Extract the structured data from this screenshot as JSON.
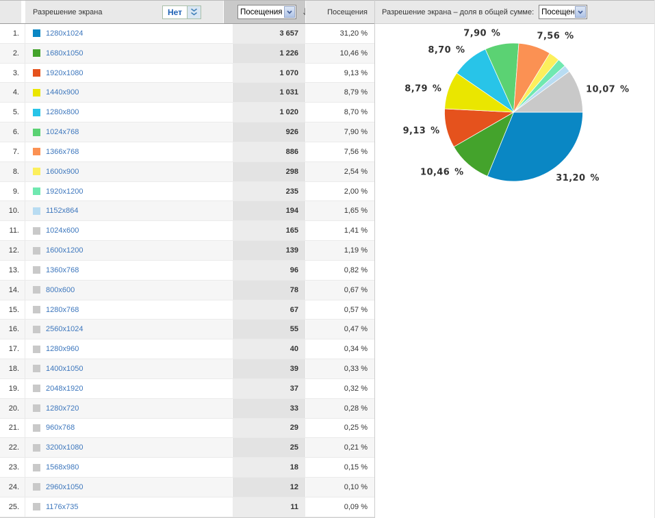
{
  "table": {
    "header": {
      "dimension_label": "Разрешение экрана",
      "filter_value": "Нет",
      "metric_select_value": "Посещения",
      "sort_arrow": "↓",
      "metric_column_label": "Посещения"
    },
    "rows": [
      {
        "rank": "1.",
        "resolution": "1280x1024",
        "visits": "3 657",
        "percent": "31,20 %",
        "color": "#0A87C4"
      },
      {
        "rank": "2.",
        "resolution": "1680x1050",
        "visits": "1 226",
        "percent": "10,46 %",
        "color": "#44A32C"
      },
      {
        "rank": "3.",
        "resolution": "1920x1080",
        "visits": "1 070",
        "percent": "9,13 %",
        "color": "#E5521D"
      },
      {
        "rank": "4.",
        "resolution": "1440x900",
        "visits": "1 031",
        "percent": "8,79 %",
        "color": "#EAE600"
      },
      {
        "rank": "5.",
        "resolution": "1280x800",
        "visits": "1 020",
        "percent": "8,70 %",
        "color": "#28C4E8"
      },
      {
        "rank": "6.",
        "resolution": "1024x768",
        "visits": "926",
        "percent": "7,90 %",
        "color": "#5BD273"
      },
      {
        "rank": "7.",
        "resolution": "1366x768",
        "visits": "886",
        "percent": "7,56 %",
        "color": "#FB9153"
      },
      {
        "rank": "8.",
        "resolution": "1600x900",
        "visits": "298",
        "percent": "2,54 %",
        "color": "#FCEF5C"
      },
      {
        "rank": "9.",
        "resolution": "1920x1200",
        "visits": "235",
        "percent": "2,00 %",
        "color": "#70E8B0"
      },
      {
        "rank": "10.",
        "resolution": "1152x864",
        "visits": "194",
        "percent": "1,65 %",
        "color": "#B8DCF2"
      },
      {
        "rank": "11.",
        "resolution": "1024x600",
        "visits": "165",
        "percent": "1,41 %",
        "color": "#C9C9C9"
      },
      {
        "rank": "12.",
        "resolution": "1600x1200",
        "visits": "139",
        "percent": "1,19 %",
        "color": "#C9C9C9"
      },
      {
        "rank": "13.",
        "resolution": "1360x768",
        "visits": "96",
        "percent": "0,82 %",
        "color": "#C9C9C9"
      },
      {
        "rank": "14.",
        "resolution": "800x600",
        "visits": "78",
        "percent": "0,67 %",
        "color": "#C9C9C9"
      },
      {
        "rank": "15.",
        "resolution": "1280x768",
        "visits": "67",
        "percent": "0,57 %",
        "color": "#C9C9C9"
      },
      {
        "rank": "16.",
        "resolution": "2560x1024",
        "visits": "55",
        "percent": "0,47 %",
        "color": "#C9C9C9"
      },
      {
        "rank": "17.",
        "resolution": "1280x960",
        "visits": "40",
        "percent": "0,34 %",
        "color": "#C9C9C9"
      },
      {
        "rank": "18.",
        "resolution": "1400x1050",
        "visits": "39",
        "percent": "0,33 %",
        "color": "#C9C9C9"
      },
      {
        "rank": "19.",
        "resolution": "2048x1920",
        "visits": "37",
        "percent": "0,32 %",
        "color": "#C9C9C9"
      },
      {
        "rank": "20.",
        "resolution": "1280x720",
        "visits": "33",
        "percent": "0,28 %",
        "color": "#C9C9C9"
      },
      {
        "rank": "21.",
        "resolution": "960x768",
        "visits": "29",
        "percent": "0,25 %",
        "color": "#C9C9C9"
      },
      {
        "rank": "22.",
        "resolution": "3200x1080",
        "visits": "25",
        "percent": "0,21 %",
        "color": "#C9C9C9"
      },
      {
        "rank": "23.",
        "resolution": "1568x980",
        "visits": "18",
        "percent": "0,15 %",
        "color": "#C9C9C9"
      },
      {
        "rank": "24.",
        "resolution": "2960x1050",
        "visits": "12",
        "percent": "0,10 %",
        "color": "#C9C9C9"
      },
      {
        "rank": "25.",
        "resolution": "1176x735",
        "visits": "11",
        "percent": "0,09 %",
        "color": "#C9C9C9"
      }
    ]
  },
  "chart_header": {
    "label": "Разрешение экрана – доля в общей сумме:",
    "select_value": "Посещения"
  },
  "chart_data": {
    "type": "pie",
    "unit": "%",
    "start_angle_deg": 0,
    "direction": "clockwise",
    "legend": "none",
    "slices": [
      {
        "label": "1280x1024",
        "value": 31.2,
        "display": "31,20 %",
        "color": "#0A87C4"
      },
      {
        "label": "1680x1050",
        "value": 10.46,
        "display": "10,46 %",
        "color": "#44A32C"
      },
      {
        "label": "1920x1080",
        "value": 9.13,
        "display": "9,13 %",
        "color": "#E5521D"
      },
      {
        "label": "1440x900",
        "value": 8.79,
        "display": "8,79 %",
        "color": "#EAE600"
      },
      {
        "label": "1280x800",
        "value": 8.7,
        "display": "8,70 %",
        "color": "#28C4E8"
      },
      {
        "label": "1024x768",
        "value": 7.9,
        "display": "7,90 %",
        "color": "#5BD273"
      },
      {
        "label": "1366x768",
        "value": 7.56,
        "display": "7,56 %",
        "color": "#FB9153"
      },
      {
        "label": "1600x900",
        "value": 2.54,
        "display": null,
        "color": "#FCEF5C"
      },
      {
        "label": "1920x1200",
        "value": 2.0,
        "display": null,
        "color": "#70E8B0"
      },
      {
        "label": "1152x864",
        "value": 1.65,
        "display": null,
        "color": "#B8DCF2"
      },
      {
        "label": "",
        "value": 10.07,
        "display": "10,07 %",
        "color": "#C9C9C9"
      }
    ]
  },
  "colors": {
    "link_blue": "#3D77BD",
    "header_bg": "#E9E9E9",
    "metric_header_bg": "#C9C9C9",
    "metric_cell_bg": "#ECECEC",
    "gray_slice": "#C9C9C9",
    "label_text": "#333333"
  }
}
